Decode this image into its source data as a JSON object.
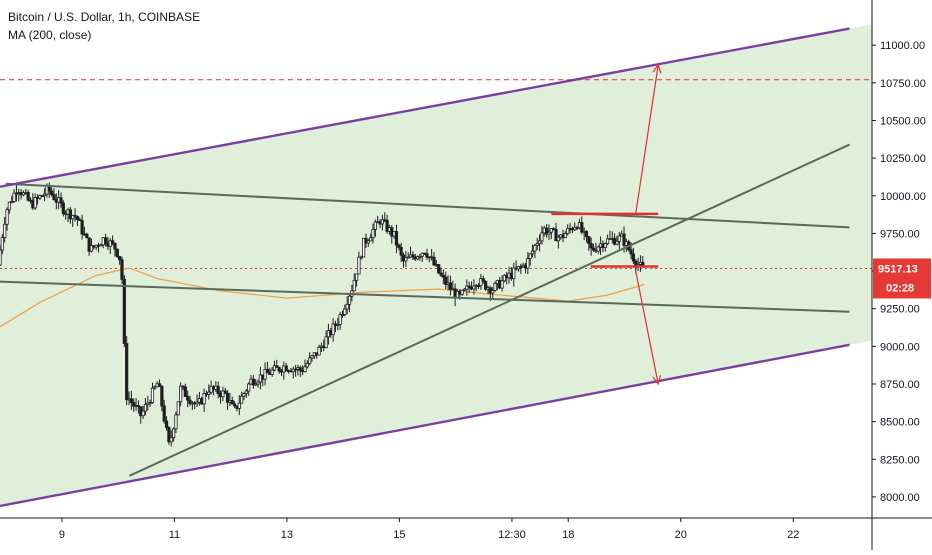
{
  "header": {
    "symbol_line": "Bitcoin / U.S. Dollar, 1h, COINBASE",
    "indicator_line": "MA (200, close)"
  },
  "price_label": {
    "value": "9517.13",
    "countdown": "02:28"
  },
  "colors": {
    "channel_fill": "#d9ecd2",
    "channel_border": "#7b3fa1",
    "trendline": "#5b6b5b",
    "candle": "#1e1e1e",
    "ma_line": "#f0a24a",
    "annotation": "#e03030",
    "price_marker": "#e53935"
  },
  "chart_data": {
    "type": "candlestick",
    "title": "Bitcoin / U.S. Dollar, 1h, COINBASE",
    "indicator": "MA (200, close)",
    "symbol": "Bitcoin / U.S. Dollar",
    "interval": "1h",
    "exchange": "COINBASE",
    "x_ticks": [
      "9",
      "11",
      "13",
      "15",
      "12:30",
      "18",
      "20",
      "22"
    ],
    "y_ticks": [
      8000,
      8250,
      8500,
      8750,
      9000,
      9250,
      9500,
      9750,
      10000,
      10250,
      10500,
      10750,
      11000
    ],
    "y_tick_labels": [
      "8000.00",
      "8250.00",
      "8500.00",
      "8750.00",
      "9000.00",
      "9250.00",
      "9500.00",
      "9750.00",
      "10000.00",
      "10250.00",
      "10500.00",
      "10750.00",
      "11000.00"
    ],
    "ylim": [
      7860,
      11300
    ],
    "xlim": [
      7.9,
      23.4
    ],
    "last_price": 9517.13,
    "price_path": [
      [
        7.9,
        9540
      ],
      [
        8.05,
        9900
      ],
      [
        8.25,
        10060
      ],
      [
        8.5,
        9940
      ],
      [
        8.8,
        10040
      ],
      [
        9.1,
        9900
      ],
      [
        9.3,
        9860
      ],
      [
        9.55,
        9640
      ],
      [
        9.8,
        9720
      ],
      [
        10.0,
        9650
      ],
      [
        10.1,
        9560
      ],
      [
        10.18,
        8680
      ],
      [
        10.45,
        8540
      ],
      [
        10.75,
        8760
      ],
      [
        10.95,
        8330
      ],
      [
        11.15,
        8720
      ],
      [
        11.45,
        8600
      ],
      [
        11.65,
        8720
      ],
      [
        11.95,
        8680
      ],
      [
        12.1,
        8570
      ],
      [
        12.4,
        8770
      ],
      [
        12.7,
        8820
      ],
      [
        13.0,
        8870
      ],
      [
        13.3,
        8840
      ],
      [
        13.6,
        8970
      ],
      [
        13.95,
        9170
      ],
      [
        14.2,
        9390
      ],
      [
        14.4,
        9680
      ],
      [
        14.7,
        9840
      ],
      [
        14.95,
        9730
      ],
      [
        15.1,
        9560
      ],
      [
        15.5,
        9640
      ],
      [
        15.8,
        9450
      ],
      [
        16.1,
        9320
      ],
      [
        16.4,
        9440
      ],
      [
        16.7,
        9380
      ],
      [
        17.0,
        9470
      ],
      [
        17.3,
        9550
      ],
      [
        17.6,
        9780
      ],
      [
        17.9,
        9720
      ],
      [
        18.2,
        9820
      ],
      [
        18.45,
        9640
      ],
      [
        18.7,
        9700
      ],
      [
        19.0,
        9720
      ],
      [
        19.25,
        9560
      ],
      [
        19.35,
        9517
      ]
    ],
    "ma_200": [
      [
        7.9,
        9130
      ],
      [
        8.6,
        9290
      ],
      [
        9.6,
        9470
      ],
      [
        10.2,
        9520
      ],
      [
        10.7,
        9450
      ],
      [
        11.8,
        9370
      ],
      [
        13.0,
        9320
      ],
      [
        14.4,
        9360
      ],
      [
        15.7,
        9380
      ],
      [
        16.8,
        9340
      ],
      [
        18.0,
        9300
      ],
      [
        18.7,
        9340
      ],
      [
        19.35,
        9410
      ]
    ],
    "channel_upper": [
      [
        7.9,
        10060
      ],
      [
        23.0,
        11110
      ]
    ],
    "channel_lower": [
      [
        7.9,
        7940
      ],
      [
        23.0,
        9010
      ]
    ],
    "trendline_desc_upper": [
      [
        8.0,
        10080
      ],
      [
        23.0,
        9790
      ]
    ],
    "trendline_desc_lower": [
      [
        7.9,
        9430
      ],
      [
        23.0,
        9230
      ]
    ],
    "trendline_ascending": [
      [
        10.2,
        8140
      ],
      [
        23.0,
        10340
      ]
    ],
    "resistance_level": 10770,
    "range_top": {
      "x1": 17.7,
      "x2": 19.6,
      "y": 9880
    },
    "range_bottom": {
      "x1": 18.4,
      "x2": 19.6,
      "y": 9530
    },
    "projection_up": {
      "from": [
        19.2,
        9880
      ],
      "to": [
        19.6,
        10870
      ]
    },
    "projection_down": {
      "from": [
        19.2,
        9500
      ],
      "to": [
        19.6,
        8750
      ]
    }
  }
}
